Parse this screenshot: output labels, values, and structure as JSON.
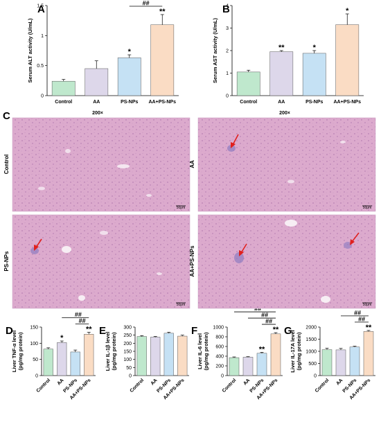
{
  "colors": {
    "Control": "#bfe8cd",
    "AA": "#ddd7ea",
    "PS-NPs": "#c5e1f4",
    "AA+PS-NPs": "#fadcc4",
    "tissue": "#d9a5c9",
    "arrow": "#e0201e"
  },
  "histology": {
    "letter": "C",
    "magnification": [
      "200×",
      "200×"
    ],
    "rows": [
      "Control",
      "AA",
      "PS-NPs",
      "AA+PS-NPs"
    ],
    "scale_bar": "50μm"
  },
  "chart_data": [
    {
      "panel": "A",
      "type": "bar",
      "categories": [
        "Control",
        "AA",
        "PS-NPs",
        "AA+PS-NPs"
      ],
      "values": [
        0.24,
        0.45,
        0.63,
        1.18
      ],
      "errors": [
        0.03,
        0.13,
        0.05,
        0.17
      ],
      "ylabel": "Serum ALT activity (U/mL)",
      "ylim": [
        0,
        1.5
      ],
      "yticks": [
        0,
        0.5,
        1,
        1.5
      ],
      "yticklabels": [
        "0",
        "0.5",
        "1",
        "1.5"
      ],
      "significance": [
        "",
        "",
        "*",
        "**"
      ],
      "comparisons": [
        {
          "from": 1,
          "to": 3,
          "label": "##"
        },
        {
          "from": 2,
          "to": 3,
          "label": "##"
        }
      ],
      "tick_rotation": 0
    },
    {
      "panel": "B",
      "type": "bar",
      "categories": [
        "Control",
        "AA",
        "PS-NPs",
        "AA+PS-NPs"
      ],
      "values": [
        1.05,
        1.95,
        1.88,
        3.15
      ],
      "errors": [
        0.08,
        0.05,
        0.12,
        0.48
      ],
      "ylabel": "Serum AST activity (U/mL)",
      "ylim": [
        0,
        4
      ],
      "yticks": [
        0,
        1,
        2,
        3,
        4
      ],
      "yticklabels": [
        "0",
        "1",
        "2",
        "3",
        "4"
      ],
      "significance": [
        "",
        "**",
        "*",
        "*"
      ],
      "comparisons": [],
      "tick_rotation": 0
    },
    {
      "panel": "D",
      "type": "bar",
      "categories": [
        "Control",
        "AA",
        "PS-NPs",
        "AA+PS-NPs"
      ],
      "values": [
        82,
        102,
        73,
        128
      ],
      "errors": [
        4,
        5,
        6,
        6
      ],
      "ylabel": "Liver TNF-α level\n(pg/mg protein)",
      "ylim": [
        0,
        150
      ],
      "yticks": [
        0,
        50,
        100,
        150
      ],
      "yticklabels": [
        "0",
        "50",
        "100",
        "150"
      ],
      "significance": [
        "",
        "*",
        "",
        "**"
      ],
      "comparisons": [
        {
          "from": 1,
          "to": 3,
          "label": "##"
        },
        {
          "from": 2,
          "to": 3,
          "label": "##"
        }
      ],
      "tick_rotation": -45
    },
    {
      "panel": "E",
      "type": "bar",
      "categories": [
        "Control",
        "AA",
        "PS-NPs",
        "AA+PS-NPs"
      ],
      "values": [
        242,
        238,
        262,
        244
      ],
      "errors": [
        5,
        4,
        6,
        6
      ],
      "ylabel": "Liver IL-1β level\n(pg/mg protein)",
      "ylim": [
        0,
        300
      ],
      "yticks": [
        0,
        50,
        100,
        150,
        200,
        250,
        300
      ],
      "yticklabels": [
        "0",
        "50",
        "100",
        "150",
        "200",
        "250",
        "300"
      ],
      "significance": [
        "",
        "",
        "",
        ""
      ],
      "comparisons": [],
      "tick_rotation": -45
    },
    {
      "panel": "F",
      "type": "bar",
      "categories": [
        "Control",
        "AA",
        "PS-NPs",
        "AA+PS-NPs"
      ],
      "values": [
        370,
        380,
        460,
        860
      ],
      "errors": [
        15,
        10,
        20,
        25
      ],
      "ylabel": "Liver IL-6 level\n(pg/mg protein)",
      "ylim": [
        0,
        1000
      ],
      "yticks": [
        0,
        200,
        400,
        600,
        800,
        1000
      ],
      "yticklabels": [
        "0",
        "200",
        "400",
        "600",
        "800",
        "1000"
      ],
      "significance": [
        "",
        "",
        "**",
        "**"
      ],
      "comparisons": [
        {
          "from": 0,
          "to": 3,
          "label": "##"
        },
        {
          "from": 1,
          "to": 3,
          "label": "##"
        },
        {
          "from": 2,
          "to": 3,
          "label": "##"
        }
      ],
      "tick_rotation": -45
    },
    {
      "panel": "G",
      "type": "bar",
      "categories": [
        "Control",
        "AA",
        "PS-NPs",
        "AA+PS-NPs"
      ],
      "values": [
        1070,
        1060,
        1180,
        1820
      ],
      "errors": [
        60,
        60,
        30,
        40
      ],
      "ylabel": "Liver IL-17A level\n(pg/mg protein)",
      "ylim": [
        0,
        2000
      ],
      "yticks": [
        0,
        500,
        1000,
        1500,
        2000
      ],
      "yticklabels": [
        "0",
        "500",
        "1000",
        "1500",
        "2000"
      ],
      "significance": [
        "",
        "",
        "",
        "**"
      ],
      "comparisons": [
        {
          "from": 1,
          "to": 3,
          "label": "##"
        },
        {
          "from": 2,
          "to": 3,
          "label": "##"
        }
      ],
      "tick_rotation": -45
    }
  ]
}
